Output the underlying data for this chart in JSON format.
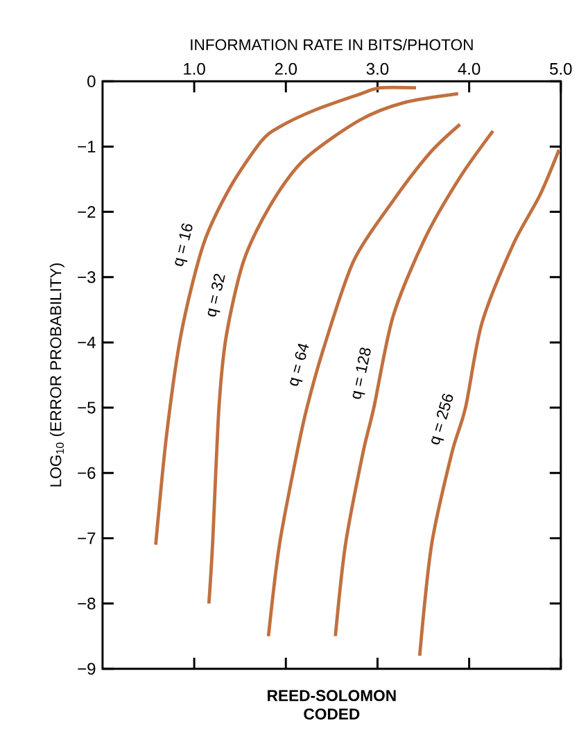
{
  "chart_data": {
    "type": "line",
    "xlabel": "INFORMATION RATE  IN BITS/PHOTON",
    "ylabel": "LOG$_{10}$ (ERROR PROBABILITY)",
    "xlim": [
      0,
      5
    ],
    "ylim": [
      -9,
      0
    ],
    "xticks": [
      {
        "value": 1,
        "label": "1.0"
      },
      {
        "value": 2,
        "label": "2.0"
      },
      {
        "value": 3,
        "label": "3.0"
      },
      {
        "value": 4,
        "label": "4.0"
      },
      {
        "value": 5,
        "label": "5.0"
      }
    ],
    "yticks": [
      {
        "value": -9,
        "label": "−9"
      },
      {
        "value": -8,
        "label": "−8"
      },
      {
        "value": -7,
        "label": "−7"
      },
      {
        "value": -6,
        "label": "−6"
      },
      {
        "value": -5,
        "label": "−5"
      },
      {
        "value": -4,
        "label": "−4"
      },
      {
        "value": -3,
        "label": "−3"
      },
      {
        "value": -2,
        "label": "−2"
      },
      {
        "value": -1,
        "label": "−1"
      },
      {
        "value": 0,
        "label": "0"
      }
    ],
    "grid": false,
    "legend": false,
    "series": [
      {
        "name": "q = 16",
        "color": "#c0703f",
        "x": [
          0.58,
          0.7,
          0.86,
          1.1,
          1.39,
          1.73,
          1.93,
          2.3,
          2.8,
          3.03,
          3.42
        ],
        "values": [
          -7.1,
          -5.4,
          -3.85,
          -2.5,
          -1.63,
          -0.92,
          -0.7,
          -0.45,
          -0.2,
          -0.1,
          -0.1
        ]
      },
      {
        "name": "q = 32",
        "color": "#c0703f",
        "x": [
          1.16,
          1.2,
          1.27,
          1.35,
          1.54,
          1.83,
          2.2,
          2.8,
          3.28,
          3.88
        ],
        "values": [
          -8.0,
          -7.1,
          -5.0,
          -3.9,
          -2.75,
          -1.9,
          -1.2,
          -0.6,
          -0.33,
          -0.19
        ]
      },
      {
        "name": "q = 64",
        "color": "#c0703f",
        "x": [
          1.81,
          1.93,
          2.12,
          2.23,
          2.41,
          2.74,
          3.17,
          3.57,
          3.9
        ],
        "values": [
          -8.5,
          -7.1,
          -5.7,
          -5.0,
          -4.1,
          -2.75,
          -1.83,
          -1.1,
          -0.66
        ]
      },
      {
        "name": "q = 128",
        "color": "#c0703f",
        "x": [
          2.54,
          2.65,
          2.84,
          2.96,
          3.17,
          3.52,
          3.9,
          4.26
        ],
        "values": [
          -8.5,
          -7.1,
          -5.7,
          -5.0,
          -3.6,
          -2.4,
          -1.47,
          -0.76
        ]
      },
      {
        "name": "q = 256",
        "color": "#c0703f",
        "x": [
          3.46,
          3.59,
          3.81,
          3.96,
          4.14,
          4.48,
          4.77,
          4.98
        ],
        "values": [
          -8.8,
          -7.1,
          -5.7,
          -5.0,
          -3.7,
          -2.5,
          -1.75,
          -1.05
        ]
      }
    ],
    "annotations": [
      "REED-SOLOMON CODED"
    ]
  }
}
